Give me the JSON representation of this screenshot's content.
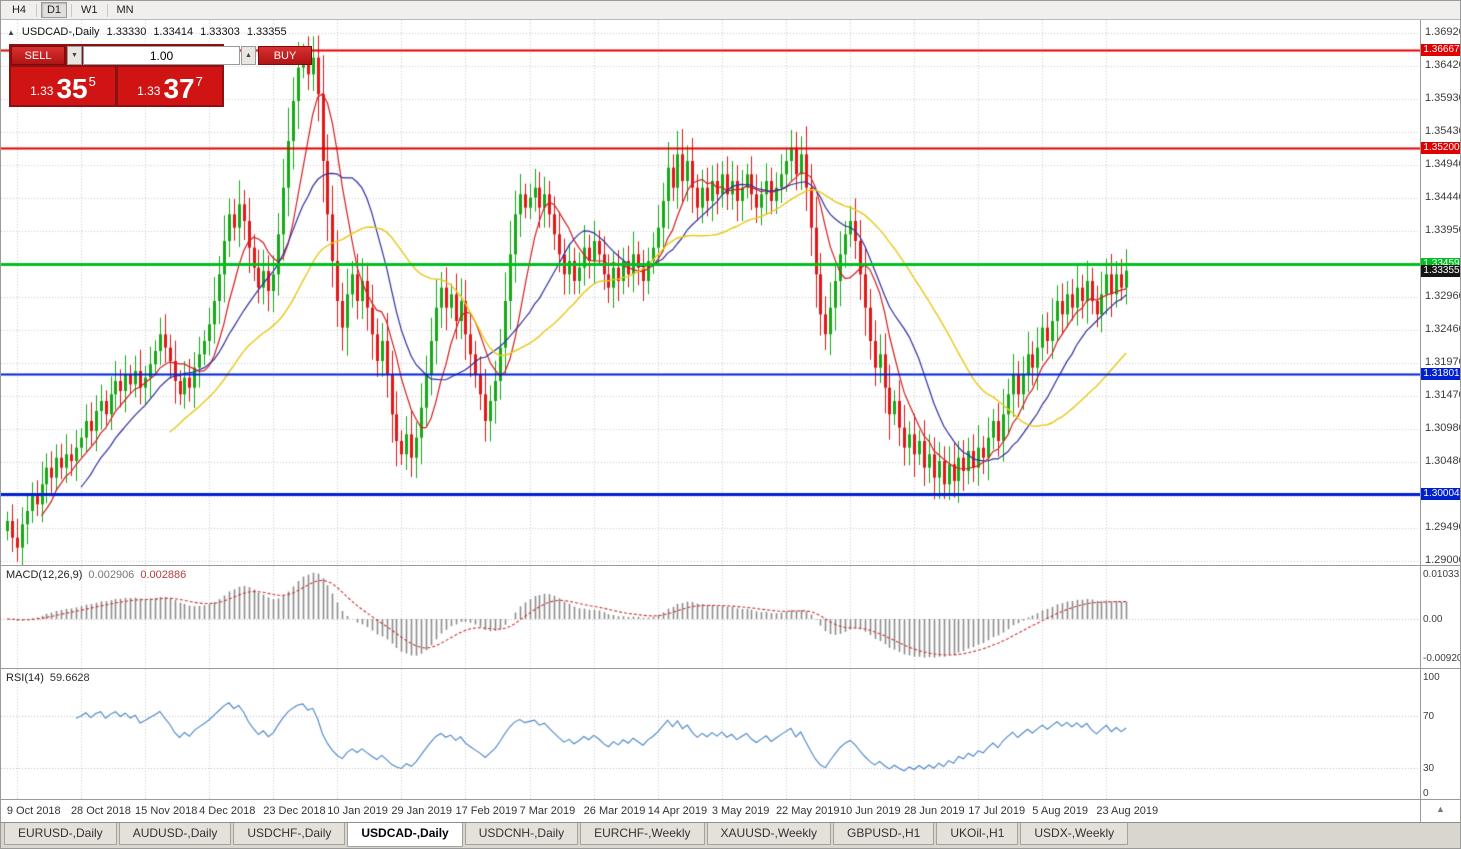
{
  "icons": {
    "marker": "▲",
    "spin_down": "▼",
    "spin_up": "▲",
    "corner_marker": "▲"
  },
  "toolbar": {
    "timeframes": [
      {
        "label": "H4",
        "active": false
      },
      {
        "label": "D1",
        "active": true
      },
      {
        "label": "W1",
        "active": false
      },
      {
        "label": "MN",
        "active": false
      }
    ]
  },
  "chart": {
    "title": {
      "symbol": "USDCAD-,Daily",
      "open": "1.33330",
      "high": "1.33414",
      "low": "1.33303",
      "close": "1.33355"
    }
  },
  "trade_panel": {
    "sell_label": "SELL",
    "buy_label": "BUY",
    "lot": "1.00",
    "bid_prefix": "1.33",
    "bid_big": "35",
    "bid_sup": "5",
    "ask_prefix": "1.33",
    "ask_big": "37",
    "ask_sup": "7"
  },
  "tabs": [
    {
      "label": "EURUSD-,Daily",
      "active": false
    },
    {
      "label": "AUDUSD-,Daily",
      "active": false
    },
    {
      "label": "USDCHF-,Daily",
      "active": false
    },
    {
      "label": "USDCAD-,Daily",
      "active": true
    },
    {
      "label": "USDCNH-,Daily",
      "active": false
    },
    {
      "label": "EURCHF-,Weekly",
      "active": false
    },
    {
      "label": "XAUUSD-,Weekly",
      "active": false
    },
    {
      "label": "GBPUSD-,H1",
      "active": false
    },
    {
      "label": "UKOil-,H1",
      "active": false
    },
    {
      "label": "USDX-,Weekly",
      "active": false
    }
  ],
  "chart_data": {
    "type": "candlestick",
    "symbol": "USDCAD-,Daily",
    "x_labels": [
      "9 Oct 2018",
      "28 Oct 2018",
      "15 Nov 2018",
      "4 Dec 2018",
      "23 Dec 2018",
      "10 Jan 2019",
      "29 Jan 2019",
      "17 Feb 2019",
      "7 Mar 2019",
      "26 Mar 2019",
      "14 Apr 2019",
      "3 May 2019",
      "22 May 2019",
      "10 Jun 2019",
      "28 Jun 2019",
      "17 Jul 2019",
      "5 Aug 2019",
      "23 Aug 2019"
    ],
    "x_label_first_index": 2,
    "x_label_step": 13,
    "closes": [
      1.296,
      1.2935,
      1.292,
      1.2955,
      1.2975,
      1.3,
      1.2985,
      1.3015,
      1.304,
      1.3025,
      1.3055,
      1.304,
      1.306,
      1.305,
      1.307,
      1.3085,
      1.311,
      1.3095,
      1.3125,
      1.314,
      1.312,
      1.315,
      1.317,
      1.3155,
      1.318,
      1.3165,
      1.3185,
      1.316,
      1.3175,
      1.3195,
      1.3215,
      1.324,
      1.322,
      1.32,
      1.317,
      1.315,
      1.3175,
      1.316,
      1.319,
      1.321,
      1.323,
      1.3255,
      1.329,
      1.333,
      1.338,
      1.342,
      1.34,
      1.3435,
      1.341,
      1.337,
      1.334,
      1.331,
      1.3335,
      1.3305,
      1.333,
      1.339,
      1.346,
      1.353,
      1.359,
      1.364,
      1.366,
      1.363,
      1.3655,
      1.36,
      1.35,
      1.342,
      1.335,
      1.329,
      1.325,
      1.33,
      1.333,
      1.329,
      1.332,
      1.328,
      1.324,
      1.32,
      1.323,
      1.318,
      1.312,
      1.308,
      1.306,
      1.309,
      1.3055,
      1.3085,
      1.313,
      1.318,
      1.323,
      1.328,
      1.331,
      1.328,
      1.33,
      1.326,
      1.329,
      1.324,
      1.321,
      1.318,
      1.315,
      1.311,
      1.314,
      1.317,
      1.322,
      1.329,
      1.336,
      1.342,
      1.345,
      1.343,
      1.3445,
      1.346,
      1.343,
      1.345,
      1.342,
      1.339,
      1.336,
      1.333,
      1.335,
      1.332,
      1.334,
      1.337,
      1.335,
      1.338,
      1.336,
      1.333,
      1.331,
      1.334,
      1.332,
      1.335,
      1.333,
      1.336,
      1.334,
      1.332,
      1.335,
      1.337,
      1.34,
      1.344,
      1.349,
      1.346,
      1.351,
      1.347,
      1.35,
      1.346,
      1.343,
      1.346,
      1.344,
      1.347,
      1.345,
      1.348,
      1.345,
      1.347,
      1.344,
      1.346,
      1.348,
      1.345,
      1.343,
      1.345,
      1.347,
      1.344,
      1.346,
      1.348,
      1.35,
      1.352,
      1.348,
      1.351,
      1.346,
      1.34,
      1.333,
      1.327,
      1.324,
      1.328,
      1.332,
      1.336,
      1.339,
      1.341,
      1.338,
      1.333,
      1.328,
      1.323,
      1.319,
      1.321,
      1.316,
      1.312,
      1.314,
      1.31,
      1.307,
      1.309,
      1.306,
      1.308,
      1.304,
      1.306,
      1.3025,
      1.305,
      1.3015,
      1.3045,
      1.302,
      1.3055,
      1.3035,
      1.3065,
      1.304,
      1.307,
      1.3055,
      1.3085,
      1.311,
      1.308,
      1.312,
      1.315,
      1.318,
      1.315,
      1.318,
      1.321,
      1.319,
      1.322,
      1.325,
      1.323,
      1.326,
      1.329,
      1.327,
      1.33,
      1.328,
      1.331,
      1.329,
      1.332,
      1.329,
      1.327,
      1.33,
      1.333,
      1.33,
      1.333,
      1.331,
      1.33355
    ],
    "candle_colors": {
      "up": "#18a818",
      "down": "#e01818"
    },
    "moving_averages": [
      {
        "period": 8,
        "color": "#d02020"
      },
      {
        "period": 16,
        "color": "#3030a0"
      },
      {
        "period": 34,
        "color": "#e8c818"
      }
    ],
    "y_axis": {
      "top": 1.3692,
      "bottom": 1.29,
      "ticks": [
        "1.36920",
        "1.36420",
        "1.35930",
        "1.35430",
        "1.34940",
        "1.34440",
        "1.33950",
        "1.33450",
        "1.32960",
        "1.32460",
        "1.31970",
        "1.31470",
        "1.30980",
        "1.30480",
        "1.29980",
        "1.29490",
        "1.29000"
      ]
    },
    "hlines": [
      {
        "price": 1.36667,
        "label": "1.36667",
        "color": "#e00000",
        "width": 2
      },
      {
        "price": 1.352,
        "label": "1.35200",
        "color": "#e00000",
        "width": 2
      },
      {
        "price": 1.33459,
        "label": "1.33459",
        "color": "#00c020",
        "width": 3
      },
      {
        "price": 1.31801,
        "label": "1.31801",
        "color": "#0020d0",
        "width": 2
      },
      {
        "price": 1.30004,
        "label": "1.30004",
        "color": "#0020d0",
        "width": 3
      }
    ],
    "current_price": {
      "value": 1.33355,
      "label": "1.33355",
      "bg": "#151515"
    },
    "macd": {
      "label": "MACD(12,26,9)",
      "values": [
        "0.002906",
        "0.002886"
      ],
      "fast": 12,
      "slow": 26,
      "signal": 9,
      "scale_top": "0.0103310",
      "scale_zero": "0.00",
      "scale_bottom": "-0.0092030",
      "scale_top_v": 0.010331,
      "scale_bottom_v": -0.009203,
      "hist_color": "#8c8c8c",
      "signal_color": "#c83838"
    },
    "rsi": {
      "label": "RSI(14)",
      "value": "59.6628",
      "period": 14,
      "levels": [
        100,
        70,
        30,
        0
      ],
      "dotted_levels": [
        70,
        30
      ],
      "line_color": "#4a86c8"
    }
  }
}
